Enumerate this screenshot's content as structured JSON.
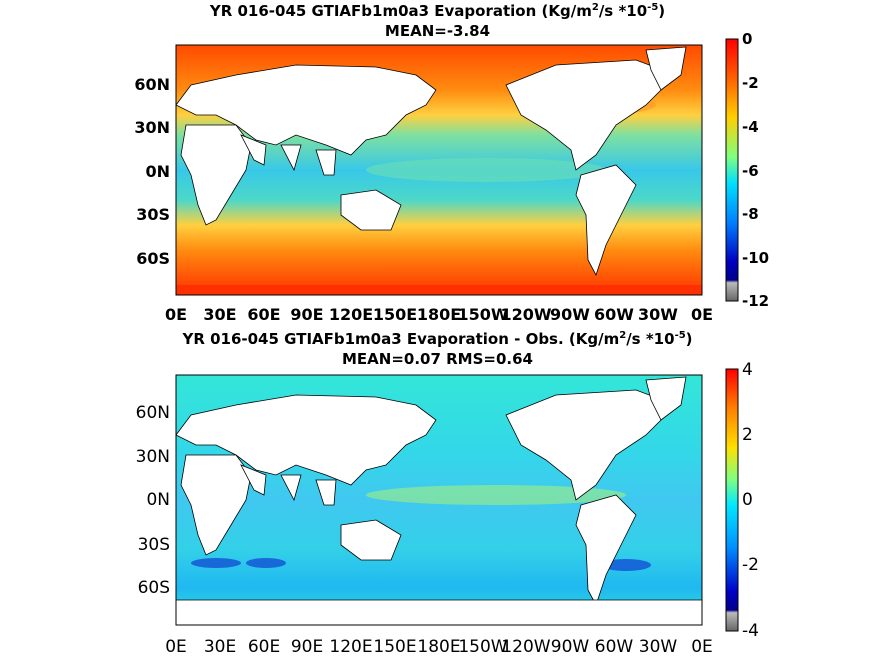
{
  "panels": [
    {
      "title_pre": "YR 016-045 GTIAFb1m0a3  Evaporation (Kg/m",
      "title_sup1": "2",
      "title_mid": "/s *10",
      "title_sup2": "-5",
      "title_post": ")",
      "stats": "MEAN=-3.84",
      "lat_labels": [
        "60N",
        "30N",
        "0N",
        "30S",
        "60S"
      ],
      "lon_labels": [
        "0E",
        "30E",
        "60E",
        "90E",
        "120E",
        "150E",
        "180E",
        "150W",
        "120W",
        "90W",
        "60W",
        "30W",
        "0E"
      ],
      "colorbar": {
        "min": -12,
        "max": 0,
        "tick_labels": [
          "0",
          "-2",
          "-4",
          "-6",
          "-8",
          "-10",
          "-12"
        ]
      }
    },
    {
      "title_pre": "YR 016-045 GTIAFb1m0a3 Evaporation - Obs. (Kg/m",
      "title_sup1": "2",
      "title_mid": "/s *10",
      "title_sup2": "-5",
      "title_post": ")",
      "stats": "MEAN=0.07   RMS=0.64",
      "lat_labels": [
        "60N",
        "30N",
        "0N",
        "30S",
        "60S"
      ],
      "lon_labels": [
        "0E",
        "30E",
        "60E",
        "90E",
        "120E",
        "150E",
        "180E",
        "150W",
        "120W",
        "90W",
        "60W",
        "30W",
        "0E"
      ],
      "colorbar": {
        "min": -4,
        "max": 4,
        "tick_labels": [
          "4",
          "2",
          "0",
          "-2",
          "-4"
        ]
      }
    }
  ],
  "colors": {
    "ocean_top": "#ffb030",
    "ocean_bottom": "#33e6d8",
    "land": "#ffffff"
  }
}
